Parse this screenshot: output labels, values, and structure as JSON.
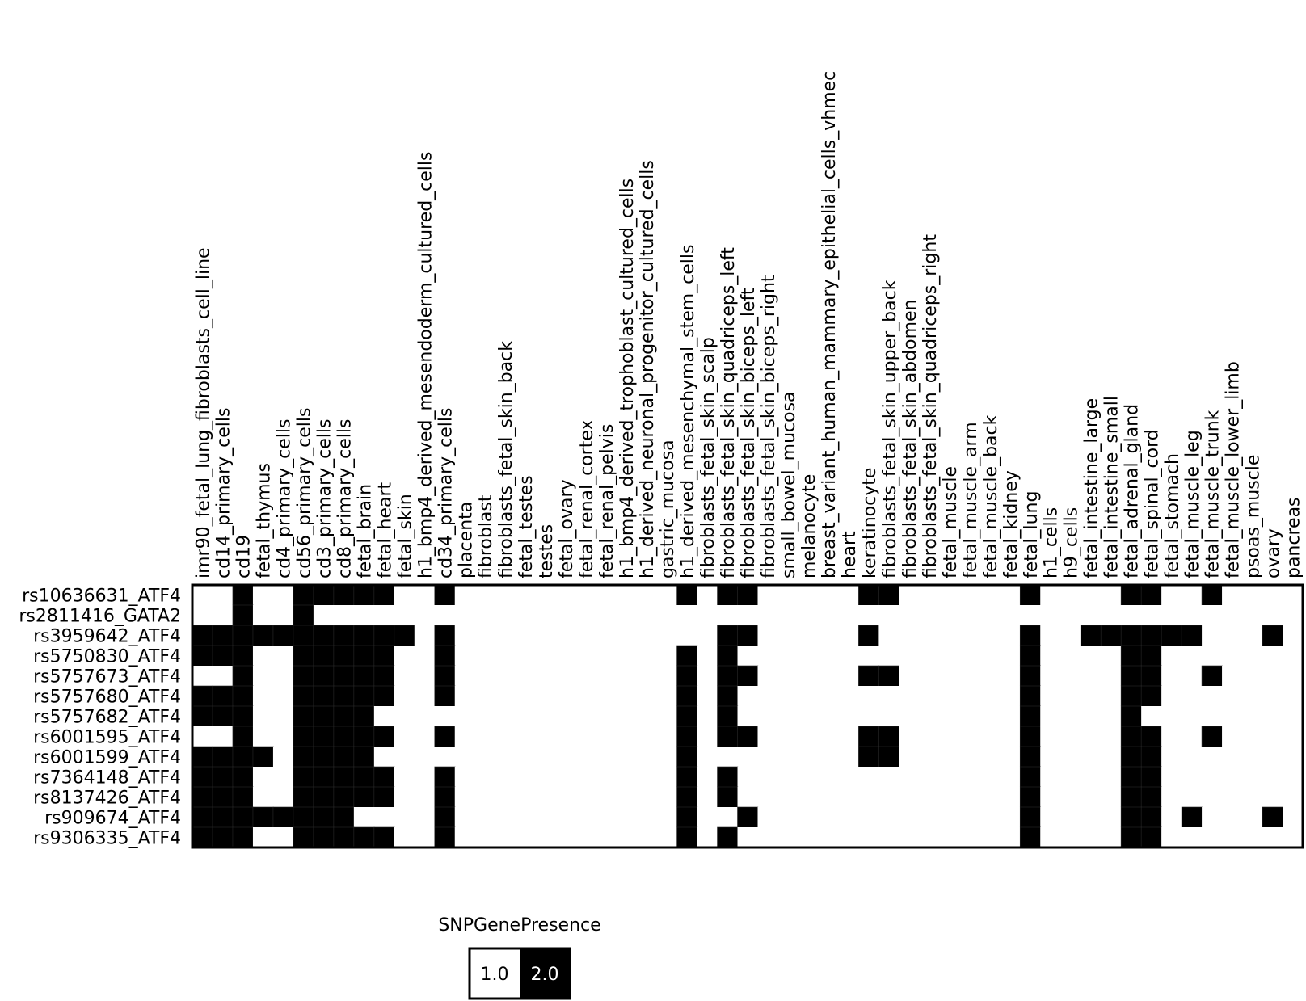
{
  "chart_data": {
    "type": "heatmap",
    "title": "",
    "xlabel": "",
    "ylabel": "",
    "columns": [
      "imr90_fetal_lung_fibroblasts_cell_line",
      "cd14_primary_cells",
      "cd19",
      "fetal_thymus",
      "cd4_primary_cells",
      "cd56_primary_cells",
      "cd3_primary_cells",
      "cd8_primary_cells",
      "fetal_brain",
      "fetal_heart",
      "fetal_skin",
      "h1_bmp4_derived_mesendoderm_cultured_cells",
      "cd34_primary_cells",
      "placenta",
      "fibroblast",
      "fibroblasts_fetal_skin_back",
      "fetal_testes",
      "testes",
      "fetal_ovary",
      "fetal_renal_cortex",
      "fetal_renal_pelvis",
      "h1_bmp4_derived_trophoblast_cultured_cells",
      "h1_derived_neuronal_progenitor_cultured_cells",
      "gastric_mucosa",
      "h1_derived_mesenchymal_stem_cells",
      "fibroblasts_fetal_skin_scalp",
      "fibroblasts_fetal_skin_quadriceps_left",
      "fibroblasts_fetal_skin_biceps_left",
      "fibroblasts_fetal_skin_biceps_right",
      "small_bowel_mucosa",
      "melanocyte",
      "breast_variant_human_mammary_epithelial_cells_vhmec",
      "heart",
      "keratinocyte",
      "fibroblasts_fetal_skin_upper_back",
      "fibroblasts_fetal_skin_abdomen",
      "fibroblasts_fetal_skin_quadriceps_right",
      "fetal_muscle",
      "fetal_muscle_arm",
      "fetal_muscle_back",
      "fetal_kidney",
      "fetal_lung",
      "h1_cells",
      "h9_cells",
      "fetal_intestine_large",
      "fetal_intestine_small",
      "fetal_adrenal_gland",
      "fetal_spinal_cord",
      "fetal_stomach",
      "fetal_muscle_leg",
      "fetal_muscle_trunk",
      "fetal_muscle_lower_limb",
      "psoas_muscle",
      "ovary",
      "pancreas"
    ],
    "rows": [
      "rs10636631_ATF4",
      "rs2811416_GATA2",
      "rs3959642_ATF4",
      "rs5750830_ATF4",
      "rs5757673_ATF4",
      "rs5757680_ATF4",
      "rs5757682_ATF4",
      "rs6001595_ATF4",
      "rs6001599_ATF4",
      "rs7364148_ATF4",
      "rs8137426_ATF4",
      "rs909674_ATF4",
      "rs9306335_ATF4"
    ],
    "values": [
      [
        1,
        1,
        2,
        1,
        1,
        2,
        2,
        2,
        2,
        2,
        1,
        1,
        2,
        1,
        1,
        1,
        1,
        1,
        1,
        1,
        1,
        1,
        1,
        1,
        2,
        1,
        2,
        2,
        1,
        1,
        1,
        1,
        1,
        2,
        2,
        1,
        1,
        1,
        1,
        1,
        1,
        2,
        1,
        1,
        1,
        1,
        2,
        2,
        1,
        1,
        2,
        1,
        1,
        1,
        1
      ],
      [
        1,
        1,
        2,
        1,
        1,
        2,
        1,
        1,
        1,
        1,
        1,
        1,
        1,
        1,
        1,
        1,
        1,
        1,
        1,
        1,
        1,
        1,
        1,
        1,
        1,
        1,
        1,
        1,
        1,
        1,
        1,
        1,
        1,
        1,
        1,
        1,
        1,
        1,
        1,
        1,
        1,
        1,
        1,
        1,
        1,
        1,
        1,
        1,
        1,
        1,
        1,
        1,
        1,
        1,
        1
      ],
      [
        2,
        2,
        2,
        2,
        2,
        2,
        2,
        2,
        2,
        2,
        2,
        1,
        2,
        1,
        1,
        1,
        1,
        1,
        1,
        1,
        1,
        1,
        1,
        1,
        1,
        1,
        2,
        2,
        1,
        1,
        1,
        1,
        1,
        2,
        1,
        1,
        1,
        1,
        1,
        1,
        1,
        2,
        1,
        1,
        2,
        2,
        2,
        2,
        2,
        2,
        1,
        1,
        1,
        2,
        1
      ],
      [
        2,
        2,
        2,
        1,
        1,
        2,
        2,
        2,
        2,
        2,
        1,
        1,
        2,
        1,
        1,
        1,
        1,
        1,
        1,
        1,
        1,
        1,
        1,
        1,
        2,
        1,
        2,
        1,
        1,
        1,
        1,
        1,
        1,
        1,
        1,
        1,
        1,
        1,
        1,
        1,
        1,
        2,
        1,
        1,
        1,
        1,
        2,
        2,
        1,
        1,
        1,
        1,
        1,
        1,
        1
      ],
      [
        1,
        1,
        2,
        1,
        1,
        2,
        2,
        2,
        2,
        2,
        1,
        1,
        2,
        1,
        1,
        1,
        1,
        1,
        1,
        1,
        1,
        1,
        1,
        1,
        2,
        1,
        2,
        2,
        1,
        1,
        1,
        1,
        1,
        2,
        2,
        1,
        1,
        1,
        1,
        1,
        1,
        2,
        1,
        1,
        1,
        1,
        2,
        2,
        1,
        1,
        2,
        1,
        1,
        1,
        1
      ],
      [
        2,
        2,
        2,
        1,
        1,
        2,
        2,
        2,
        2,
        2,
        1,
        1,
        2,
        1,
        1,
        1,
        1,
        1,
        1,
        1,
        1,
        1,
        1,
        1,
        2,
        1,
        2,
        1,
        1,
        1,
        1,
        1,
        1,
        1,
        1,
        1,
        1,
        1,
        1,
        1,
        1,
        2,
        1,
        1,
        1,
        1,
        2,
        2,
        1,
        1,
        1,
        1,
        1,
        1,
        1
      ],
      [
        2,
        2,
        2,
        1,
        1,
        2,
        2,
        2,
        2,
        1,
        1,
        1,
        1,
        1,
        1,
        1,
        1,
        1,
        1,
        1,
        1,
        1,
        1,
        1,
        2,
        1,
        2,
        1,
        1,
        1,
        1,
        1,
        1,
        1,
        1,
        1,
        1,
        1,
        1,
        1,
        1,
        2,
        1,
        1,
        1,
        1,
        2,
        1,
        1,
        1,
        1,
        1,
        1,
        1,
        1
      ],
      [
        1,
        1,
        2,
        1,
        1,
        2,
        2,
        2,
        2,
        2,
        1,
        1,
        2,
        1,
        1,
        1,
        1,
        1,
        1,
        1,
        1,
        1,
        1,
        1,
        2,
        1,
        2,
        2,
        1,
        1,
        1,
        1,
        1,
        2,
        2,
        1,
        1,
        1,
        1,
        1,
        1,
        2,
        1,
        1,
        1,
        1,
        2,
        2,
        1,
        1,
        2,
        1,
        1,
        1,
        1
      ],
      [
        2,
        2,
        2,
        2,
        1,
        2,
        2,
        2,
        2,
        1,
        1,
        1,
        1,
        1,
        1,
        1,
        1,
        1,
        1,
        1,
        1,
        1,
        1,
        1,
        2,
        1,
        1,
        1,
        1,
        1,
        1,
        1,
        1,
        2,
        2,
        1,
        1,
        1,
        1,
        1,
        1,
        2,
        1,
        1,
        1,
        1,
        2,
        2,
        1,
        1,
        1,
        1,
        1,
        1,
        1
      ],
      [
        2,
        2,
        2,
        1,
        1,
        2,
        2,
        2,
        2,
        2,
        1,
        1,
        2,
        1,
        1,
        1,
        1,
        1,
        1,
        1,
        1,
        1,
        1,
        1,
        2,
        1,
        2,
        1,
        1,
        1,
        1,
        1,
        1,
        1,
        1,
        1,
        1,
        1,
        1,
        1,
        1,
        2,
        1,
        1,
        1,
        1,
        2,
        2,
        1,
        1,
        1,
        1,
        1,
        1,
        1
      ],
      [
        2,
        2,
        2,
        1,
        1,
        2,
        2,
        2,
        2,
        2,
        1,
        1,
        2,
        1,
        1,
        1,
        1,
        1,
        1,
        1,
        1,
        1,
        1,
        1,
        2,
        1,
        2,
        1,
        1,
        1,
        1,
        1,
        1,
        1,
        1,
        1,
        1,
        1,
        1,
        1,
        1,
        2,
        1,
        1,
        1,
        1,
        2,
        2,
        1,
        1,
        1,
        1,
        1,
        1,
        1
      ],
      [
        2,
        2,
        2,
        2,
        2,
        2,
        2,
        2,
        1,
        1,
        1,
        1,
        2,
        1,
        1,
        1,
        1,
        1,
        1,
        1,
        1,
        1,
        1,
        1,
        2,
        1,
        1,
        2,
        1,
        1,
        1,
        1,
        1,
        1,
        1,
        1,
        1,
        1,
        1,
        1,
        1,
        2,
        1,
        1,
        1,
        1,
        2,
        2,
        1,
        2,
        1,
        1,
        1,
        2,
        1
      ],
      [
        2,
        2,
        2,
        1,
        1,
        2,
        2,
        2,
        2,
        2,
        1,
        1,
        2,
        1,
        1,
        1,
        1,
        1,
        1,
        1,
        1,
        1,
        1,
        1,
        2,
        1,
        2,
        1,
        1,
        1,
        1,
        1,
        1,
        1,
        1,
        1,
        1,
        1,
        1,
        1,
        1,
        2,
        1,
        1,
        1,
        1,
        2,
        2,
        1,
        1,
        1,
        1,
        1,
        1,
        1
      ]
    ],
    "legend": {
      "title": "SNPGenePresence",
      "entries": [
        "1.0",
        "2.0"
      ],
      "colors": [
        "#ffffff",
        "#000000"
      ],
      "placement": "bottom"
    },
    "grid": false
  }
}
